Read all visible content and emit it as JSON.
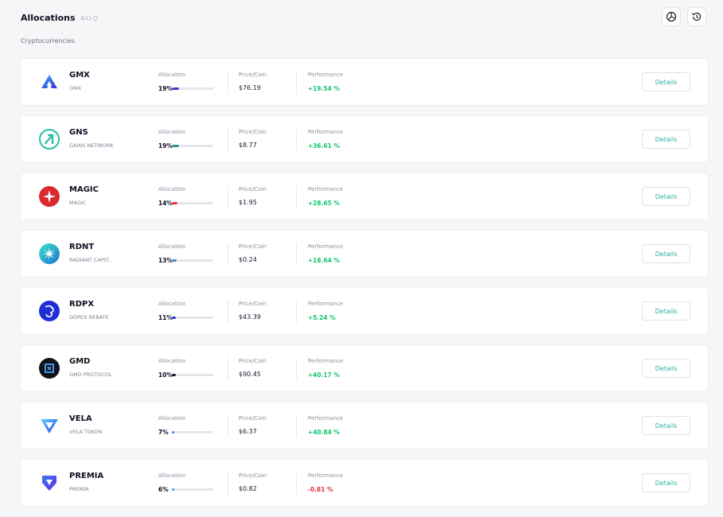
{
  "header": {
    "title": "Allocations",
    "count": "8/12"
  },
  "section_label": "Cryptocurrencies",
  "labels": {
    "allocation": "Allocation",
    "price": "Price/Coin",
    "performance": "Performance",
    "details": "Details"
  },
  "colors": {
    "positive": "#11c36f",
    "negative": "#e8343b",
    "accent": "#2bb0a2"
  },
  "assets": [
    {
      "symbol": "GMX",
      "name": "GMX",
      "allocation": "19%",
      "alloc_fraction": 0.19,
      "bar_color": "#3b3ae0",
      "price": "$76.19",
      "performance": "+19.54 %",
      "perf_positive": true,
      "icon": "gmx-logo-icon"
    },
    {
      "symbol": "GNS",
      "name": "GAINS NETWORK",
      "allocation": "19%",
      "alloc_fraction": 0.19,
      "bar_color": "#2e8f8b",
      "price": "$8.77",
      "performance": "+36.61 %",
      "perf_positive": true,
      "icon": "gns-logo-icon"
    },
    {
      "symbol": "MAGIC",
      "name": "MAGIC",
      "allocation": "14%",
      "alloc_fraction": 0.14,
      "bar_color": "#e8343b",
      "price": "$1.95",
      "performance": "+28.65 %",
      "perf_positive": true,
      "icon": "magic-logo-icon"
    },
    {
      "symbol": "RDNT",
      "name": "RADIANT CAPIT...",
      "allocation": "13%",
      "alloc_fraction": 0.13,
      "bar_color": "#3a8fd8",
      "price": "$0.24",
      "performance": "+18.64 %",
      "perf_positive": true,
      "icon": "rdnt-logo-icon"
    },
    {
      "symbol": "RDPX",
      "name": "DOPEX REBATE",
      "allocation": "11%",
      "alloc_fraction": 0.11,
      "bar_color": "#1f2fd6",
      "price": "$43.39",
      "performance": "+5.24 %",
      "perf_positive": true,
      "icon": "rdpx-logo-icon"
    },
    {
      "symbol": "GMD",
      "name": "GMD PROTOCOL",
      "allocation": "10%",
      "alloc_fraction": 0.1,
      "bar_color": "#16161f",
      "price": "$90.45",
      "performance": "+40.17 %",
      "perf_positive": true,
      "icon": "gmd-logo-icon"
    },
    {
      "symbol": "VELA",
      "name": "VELA TOKEN",
      "allocation": "7%",
      "alloc_fraction": 0.07,
      "bar_color": "#2d7be6",
      "price": "$6.37",
      "performance": "+40.84 %",
      "perf_positive": true,
      "icon": "vela-logo-icon"
    },
    {
      "symbol": "PREMIA",
      "name": "PREMIA",
      "allocation": "6%",
      "alloc_fraction": 0.06,
      "bar_color": "#3d9ee0",
      "price": "$0.82",
      "performance": "-0.81 %",
      "perf_positive": false,
      "icon": "premia-logo-icon"
    }
  ]
}
